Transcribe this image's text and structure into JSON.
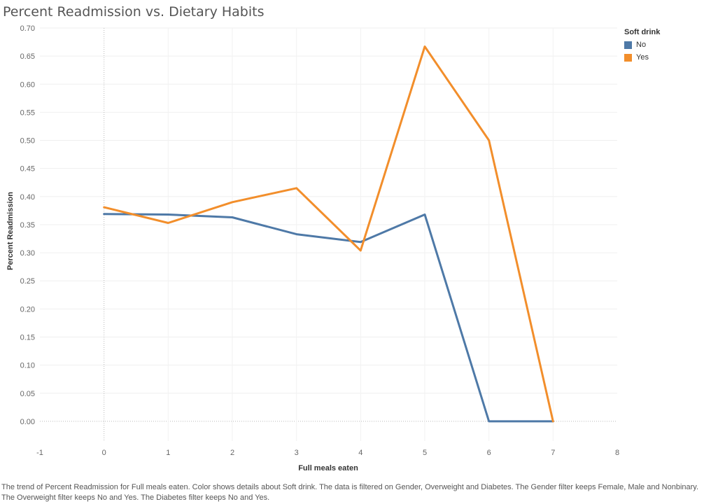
{
  "chart_data": {
    "type": "line",
    "title": "Percent Readmission vs. Dietary Habits",
    "xlabel": "Full meals eaten",
    "ylabel": "Percent Readmission",
    "xlim": [
      -1,
      8
    ],
    "ylim": [
      -0.035,
      0.7
    ],
    "x_ticks": [
      -1,
      0,
      1,
      2,
      3,
      4,
      5,
      6,
      7,
      8
    ],
    "y_ticks": [
      0.0,
      0.05,
      0.1,
      0.15,
      0.2,
      0.25,
      0.3,
      0.35,
      0.4,
      0.45,
      0.5,
      0.55,
      0.6,
      0.65,
      0.7
    ],
    "grid": true,
    "legend": {
      "title": "Soft drink",
      "position": "top-right"
    },
    "series": [
      {
        "name": "No",
        "color": "#4e79a7",
        "x": [
          0,
          1,
          2,
          3,
          4,
          5,
          6,
          7
        ],
        "y": [
          0.369,
          0.368,
          0.363,
          0.333,
          0.319,
          0.368,
          0.0,
          0.0
        ]
      },
      {
        "name": "Yes",
        "color": "#f28e2b",
        "x": [
          0,
          1,
          2,
          3,
          4,
          5,
          6,
          7
        ],
        "y": [
          0.381,
          0.353,
          0.39,
          0.415,
          0.304,
          0.667,
          0.5,
          0.0
        ]
      }
    ],
    "caption": "The trend of Percent Readmission for Full meals eaten.  Color shows details about Soft drink. The data is filtered on Gender, Overweight and Diabetes. The Gender filter keeps Female, Male and Nonbinary. The Overweight filter keeps No and Yes. The Diabetes filter keeps No and Yes."
  }
}
